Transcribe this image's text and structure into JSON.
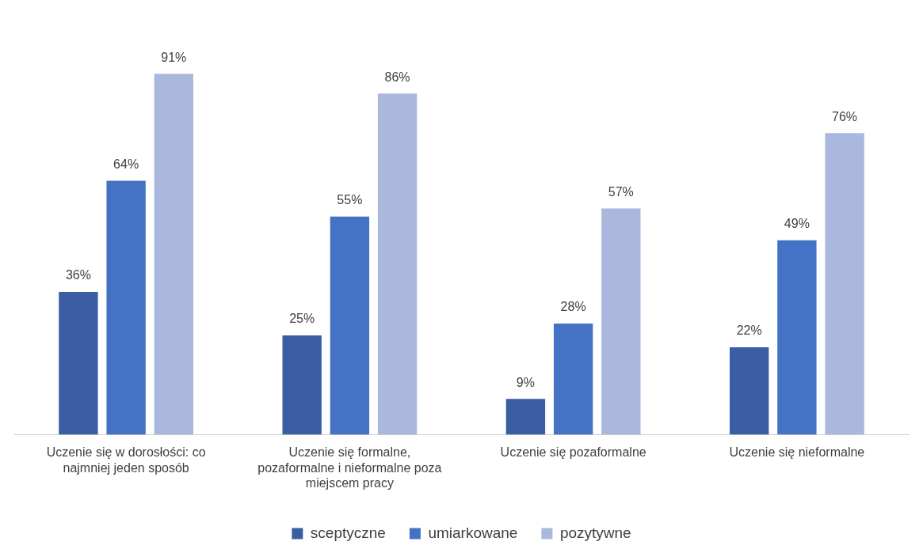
{
  "chart_data": {
    "type": "bar",
    "categories": [
      "Uczenie się w dorosłości: co najmniej jeden sposób",
      "Uczenie się formalne, pozaformalne i nieformalne poza miejscem pracy",
      "Uczenie się pozaformalne",
      "Uczenie się nieformalne"
    ],
    "series": [
      {
        "name": "sceptyczne",
        "color": "#3a5da3",
        "values": [
          36,
          25,
          9,
          22
        ],
        "value_labels": [
          "36%",
          "25%",
          "9%",
          "22%"
        ]
      },
      {
        "name": "umiarkowane",
        "color": "#4472c4",
        "values": [
          64,
          55,
          28,
          49
        ],
        "value_labels": [
          "64%",
          "55%",
          "28%",
          "49%"
        ]
      },
      {
        "name": "pozytywne",
        "color": "#a9b8dc",
        "values": [
          91,
          86,
          57,
          76
        ],
        "value_labels": [
          "91%",
          "86%",
          "57%",
          "76%"
        ]
      }
    ],
    "tick_labels": "x",
    "grid": false,
    "legend": "bottom"
  }
}
